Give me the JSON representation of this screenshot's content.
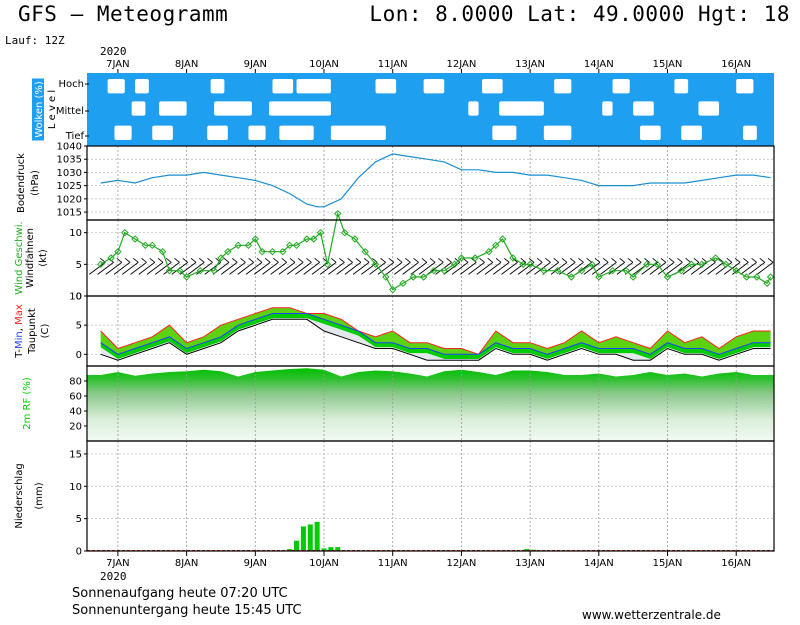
{
  "header": {
    "title": "GFS – Meteogramm",
    "coords": "Lon: 8.0000 Lat: 49.0000 Hgt: 18",
    "run": "Lauf: 12Z",
    "year": "2020"
  },
  "days": [
    "7JAN",
    "8JAN",
    "9JAN",
    "10JAN",
    "11JAN",
    "12JAN",
    "13JAN",
    "14JAN",
    "15JAN",
    "16JAN"
  ],
  "footer": {
    "sunrise": "Sonnenaufgang heute 07:20 UTC",
    "sunset": "Sonnenuntergang heute 15:45 UTC",
    "site": "www.wetterzentrale.de"
  },
  "colors": {
    "cloud_blue": "#1f9ff0",
    "pressure": "#1a8fd0",
    "wind": "#22aa22",
    "tmax": "#ff2020",
    "tmin": "#2040ff",
    "dew": "#000000",
    "green": "#00cc00",
    "yellowgreen": "#a8d820"
  },
  "chart_data": [
    {
      "type": "heatmap",
      "panel": "Wolken",
      "ylabel": "Wolken (%)",
      "ylabel2": "Level",
      "levels": [
        "Hoch",
        "Mittel",
        "Tief"
      ],
      "x_days": [
        7,
        8,
        9,
        10,
        11,
        12,
        13,
        14,
        15,
        16
      ],
      "clear_spans": {
        "Hoch": [
          [
            6.85,
            7.1
          ],
          [
            7.25,
            7.45
          ],
          [
            8.35,
            8.55
          ],
          [
            9.25,
            9.55
          ],
          [
            9.6,
            10.1
          ],
          [
            10.75,
            11.05
          ],
          [
            11.45,
            11.75
          ],
          [
            12.3,
            12.6
          ],
          [
            13.35,
            13.6
          ],
          [
            14.2,
            14.45
          ],
          [
            15.1,
            15.3
          ],
          [
            16.0,
            16.25
          ]
        ],
        "Mittel": [
          [
            7.2,
            7.4
          ],
          [
            7.6,
            8.0
          ],
          [
            8.4,
            8.95
          ],
          [
            9.2,
            10.1
          ],
          [
            12.1,
            12.25
          ],
          [
            12.55,
            13.2
          ],
          [
            14.05,
            14.2
          ],
          [
            14.5,
            14.8
          ],
          [
            15.45,
            15.75
          ]
        ],
        "Tief": [
          [
            6.95,
            7.2
          ],
          [
            7.5,
            7.8
          ],
          [
            8.3,
            8.6
          ],
          [
            8.9,
            9.15
          ],
          [
            9.35,
            9.85
          ],
          [
            10.1,
            10.9
          ],
          [
            12.45,
            12.8
          ],
          [
            13.2,
            13.6
          ],
          [
            14.6,
            14.9
          ],
          [
            15.2,
            15.5
          ],
          [
            16.1,
            16.3
          ]
        ]
      }
    },
    {
      "type": "line",
      "panel": "Bodendruck",
      "ylabel": "Bodendruck",
      "unit": "(hPa)",
      "ylim": [
        1012,
        1040
      ],
      "yticks": [
        1015,
        1020,
        1025,
        1030,
        1035,
        1040
      ],
      "x": [
        6.75,
        7.0,
        7.25,
        7.5,
        7.75,
        8.0,
        8.25,
        8.5,
        8.75,
        9.0,
        9.25,
        9.5,
        9.75,
        9.9,
        10.0,
        10.25,
        10.5,
        10.75,
        11.0,
        11.25,
        11.5,
        11.75,
        12.0,
        12.25,
        12.5,
        12.75,
        13.0,
        13.25,
        13.5,
        13.75,
        14.0,
        14.25,
        14.5,
        14.75,
        15.0,
        15.25,
        15.5,
        15.75,
        16.0,
        16.25,
        16.5
      ],
      "y": [
        1026,
        1027,
        1026,
        1028,
        1029,
        1029,
        1030,
        1029,
        1028,
        1027,
        1025,
        1022,
        1018,
        1017,
        1017,
        1020,
        1028,
        1034,
        1037,
        1036,
        1035,
        1034,
        1031,
        1031,
        1030,
        1030,
        1029,
        1029,
        1028,
        1027,
        1025,
        1025,
        1025,
        1026,
        1026,
        1026,
        1027,
        1028,
        1029,
        1029,
        1028
      ]
    },
    {
      "type": "line",
      "panel": "Wind",
      "ylabel": "Wind Geschwi.",
      "ylabel2": "Windfahnen",
      "unit": "(kt)",
      "ylim": [
        0,
        12
      ],
      "yticks": [
        0,
        5,
        10
      ],
      "series": [
        {
          "name": "Wind Geschwi.",
          "x": [
            6.75,
            6.9,
            7.0,
            7.1,
            7.25,
            7.4,
            7.5,
            7.65,
            7.75,
            7.9,
            8.0,
            8.2,
            8.4,
            8.5,
            8.6,
            8.75,
            8.9,
            9.0,
            9.1,
            9.25,
            9.4,
            9.5,
            9.6,
            9.75,
            9.85,
            9.95,
            10.05,
            10.2,
            10.3,
            10.45,
            10.6,
            10.75,
            10.9,
            11.0,
            11.15,
            11.3,
            11.45,
            11.6,
            11.75,
            11.9,
            12.0,
            12.2,
            12.4,
            12.5,
            12.6,
            12.75,
            12.9,
            13.0,
            13.2,
            13.4,
            13.6,
            13.75,
            13.9,
            14.0,
            14.2,
            14.4,
            14.5,
            14.7,
            14.85,
            15.0,
            15.2,
            15.35,
            15.5,
            15.7,
            15.85,
            16.0,
            16.15,
            16.3,
            16.45,
            16.5
          ],
          "y": [
            5,
            6,
            7,
            10,
            9,
            8,
            8,
            7,
            4,
            4,
            3,
            4,
            4,
            6,
            7,
            8,
            8,
            9,
            7,
            7,
            7,
            8,
            8,
            9,
            9,
            10,
            5,
            13,
            10,
            9,
            7,
            5,
            3,
            1,
            2,
            3,
            3,
            4,
            4,
            5,
            6,
            6,
            7,
            8,
            9,
            6,
            5,
            5,
            4,
            4,
            3,
            4,
            5,
            3,
            4,
            4,
            3,
            5,
            5,
            3,
            4,
            5,
            5,
            6,
            5,
            4,
            3,
            3,
            2,
            3
          ]
        }
      ]
    },
    {
      "type": "line",
      "panel": "Temperatur",
      "ylabel": "T-Min, Max",
      "ylabel2": "Taupunkt",
      "unit": "(C)",
      "ylim": [
        -2,
        10
      ],
      "yticks": [
        0,
        5,
        10
      ],
      "series": [
        {
          "name": "Max",
          "x": [
            6.75,
            7.0,
            7.25,
            7.5,
            7.75,
            8.0,
            8.25,
            8.5,
            8.75,
            9.0,
            9.25,
            9.5,
            9.75,
            10.0,
            10.25,
            10.5,
            10.75,
            11.0,
            11.25,
            11.5,
            11.75,
            12.0,
            12.25,
            12.5,
            12.75,
            13.0,
            13.25,
            13.5,
            13.75,
            14.0,
            14.25,
            14.5,
            14.75,
            15.0,
            15.25,
            15.5,
            15.75,
            16.0,
            16.25,
            16.5
          ],
          "y": [
            4,
            1,
            2,
            3,
            5,
            2,
            3,
            5,
            6,
            7,
            8,
            8,
            7,
            7,
            6,
            4,
            3,
            4,
            2,
            2,
            1,
            1,
            0,
            4,
            2,
            2,
            1,
            2,
            4,
            2,
            3,
            2,
            1,
            4,
            2,
            3,
            1,
            3,
            4,
            4
          ]
        },
        {
          "name": "Min",
          "x": [
            6.75,
            7.0,
            7.25,
            7.5,
            7.75,
            8.0,
            8.25,
            8.5,
            8.75,
            9.0,
            9.25,
            9.5,
            9.75,
            10.0,
            10.25,
            10.5,
            10.75,
            11.0,
            11.25,
            11.5,
            11.75,
            12.0,
            12.25,
            12.5,
            12.75,
            13.0,
            13.25,
            13.5,
            13.75,
            14.0,
            14.25,
            14.5,
            14.75,
            15.0,
            15.25,
            15.5,
            15.75,
            16.0,
            16.25,
            16.5
          ],
          "y": [
            2,
            0,
            1,
            2,
            3,
            1,
            2,
            3,
            5,
            6,
            7,
            7,
            7,
            6,
            5,
            4,
            2,
            2,
            1,
            1,
            0,
            0,
            0,
            2,
            1,
            1,
            0,
            1,
            2,
            1,
            1,
            1,
            0,
            2,
            1,
            1,
            0,
            1,
            2,
            2
          ]
        },
        {
          "name": "Taupunkt",
          "x": [
            6.75,
            7.0,
            7.25,
            7.5,
            7.75,
            8.0,
            8.25,
            8.5,
            8.75,
            9.0,
            9.25,
            9.5,
            9.75,
            10.0,
            10.25,
            10.5,
            10.75,
            11.0,
            11.25,
            11.5,
            11.75,
            12.0,
            12.25,
            12.5,
            12.75,
            13.0,
            13.25,
            13.5,
            13.75,
            14.0,
            14.25,
            14.5,
            14.75,
            15.0,
            15.25,
            15.5,
            15.75,
            16.0,
            16.25,
            16.5
          ],
          "y": [
            0,
            -1,
            0,
            1,
            2,
            0,
            1,
            2,
            4,
            5,
            6,
            6,
            6,
            4,
            3,
            2,
            1,
            1,
            0,
            -1,
            -1,
            -1,
            -1,
            1,
            0,
            0,
            -1,
            0,
            1,
            0,
            0,
            -1,
            -1,
            1,
            0,
            0,
            -1,
            0,
            1,
            1
          ]
        }
      ]
    },
    {
      "type": "area",
      "panel": "Relative Feuchte",
      "ylabel": "2m RF (%)",
      "ylim": [
        0,
        100
      ],
      "yticks": [
        20,
        40,
        60,
        80
      ],
      "x": [
        6.75,
        7.0,
        7.25,
        7.5,
        7.75,
        8.0,
        8.25,
        8.5,
        8.75,
        9.0,
        9.25,
        9.5,
        9.75,
        10.0,
        10.25,
        10.5,
        10.75,
        11.0,
        11.25,
        11.5,
        11.75,
        12.0,
        12.25,
        12.5,
        12.75,
        13.0,
        13.25,
        13.5,
        13.75,
        14.0,
        14.25,
        14.5,
        14.75,
        15.0,
        15.25,
        15.5,
        15.75,
        16.0,
        16.25,
        16.5
      ],
      "y": [
        88,
        92,
        87,
        90,
        92,
        93,
        95,
        93,
        86,
        92,
        94,
        96,
        97,
        95,
        86,
        92,
        94,
        93,
        90,
        86,
        93,
        95,
        92,
        88,
        94,
        94,
        92,
        88,
        88,
        90,
        86,
        88,
        92,
        88,
        90,
        86,
        90,
        92,
        88,
        88
      ]
    },
    {
      "type": "bar",
      "panel": "Niederschlag",
      "ylabel": "Niederschlag",
      "unit": "(mm)",
      "ylim": [
        0,
        17
      ],
      "yticks": [
        0,
        5,
        10,
        15
      ],
      "x": [
        9.5,
        9.6,
        9.7,
        9.8,
        9.9,
        10.0,
        10.1,
        10.2,
        12.95,
        13.05
      ],
      "values": [
        0.3,
        1.6,
        3.8,
        4.1,
        4.5,
        0.4,
        0.6,
        0.6,
        0.3,
        0.2
      ]
    }
  ]
}
